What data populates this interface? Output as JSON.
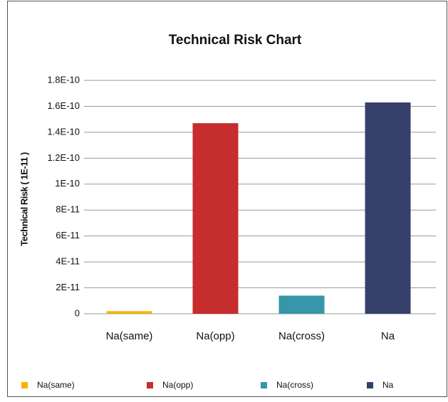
{
  "chart_data": {
    "type": "bar",
    "title": "Technical Risk Chart",
    "y_label": "Technical Risk ( 1E-11 )",
    "categories": [
      "Na(same)",
      "Na(opp)",
      "Na(cross)",
      "Na"
    ],
    "values": [
      2e-12,
      1.47e-10,
      1.4e-11,
      1.63e-10
    ],
    "colors": [
      "#f5b400",
      "#c62d2d",
      "#3797a8",
      "#35416b"
    ],
    "ylim": [
      0,
      1.8e-10
    ],
    "yticks": [
      0,
      {
        "value": 2e-11,
        "label": "2E-11"
      },
      {
        "value": 4e-11,
        "label": "4E-11"
      },
      {
        "value": 6e-11,
        "label": "6E-11"
      },
      {
        "value": 8e-11,
        "label": "8E-11"
      },
      {
        "value": 1e-10,
        "label": "1E-10"
      },
      {
        "value": 1.2e-10,
        "label": "1.2E-10"
      },
      {
        "value": 1.4e-10,
        "label": "1.4E-10"
      },
      {
        "value": 1.6e-10,
        "label": "1.6E-10"
      },
      {
        "value": 1.8e-10,
        "label": "1.8E-10"
      }
    ],
    "grid": true,
    "legend": "bottom"
  }
}
